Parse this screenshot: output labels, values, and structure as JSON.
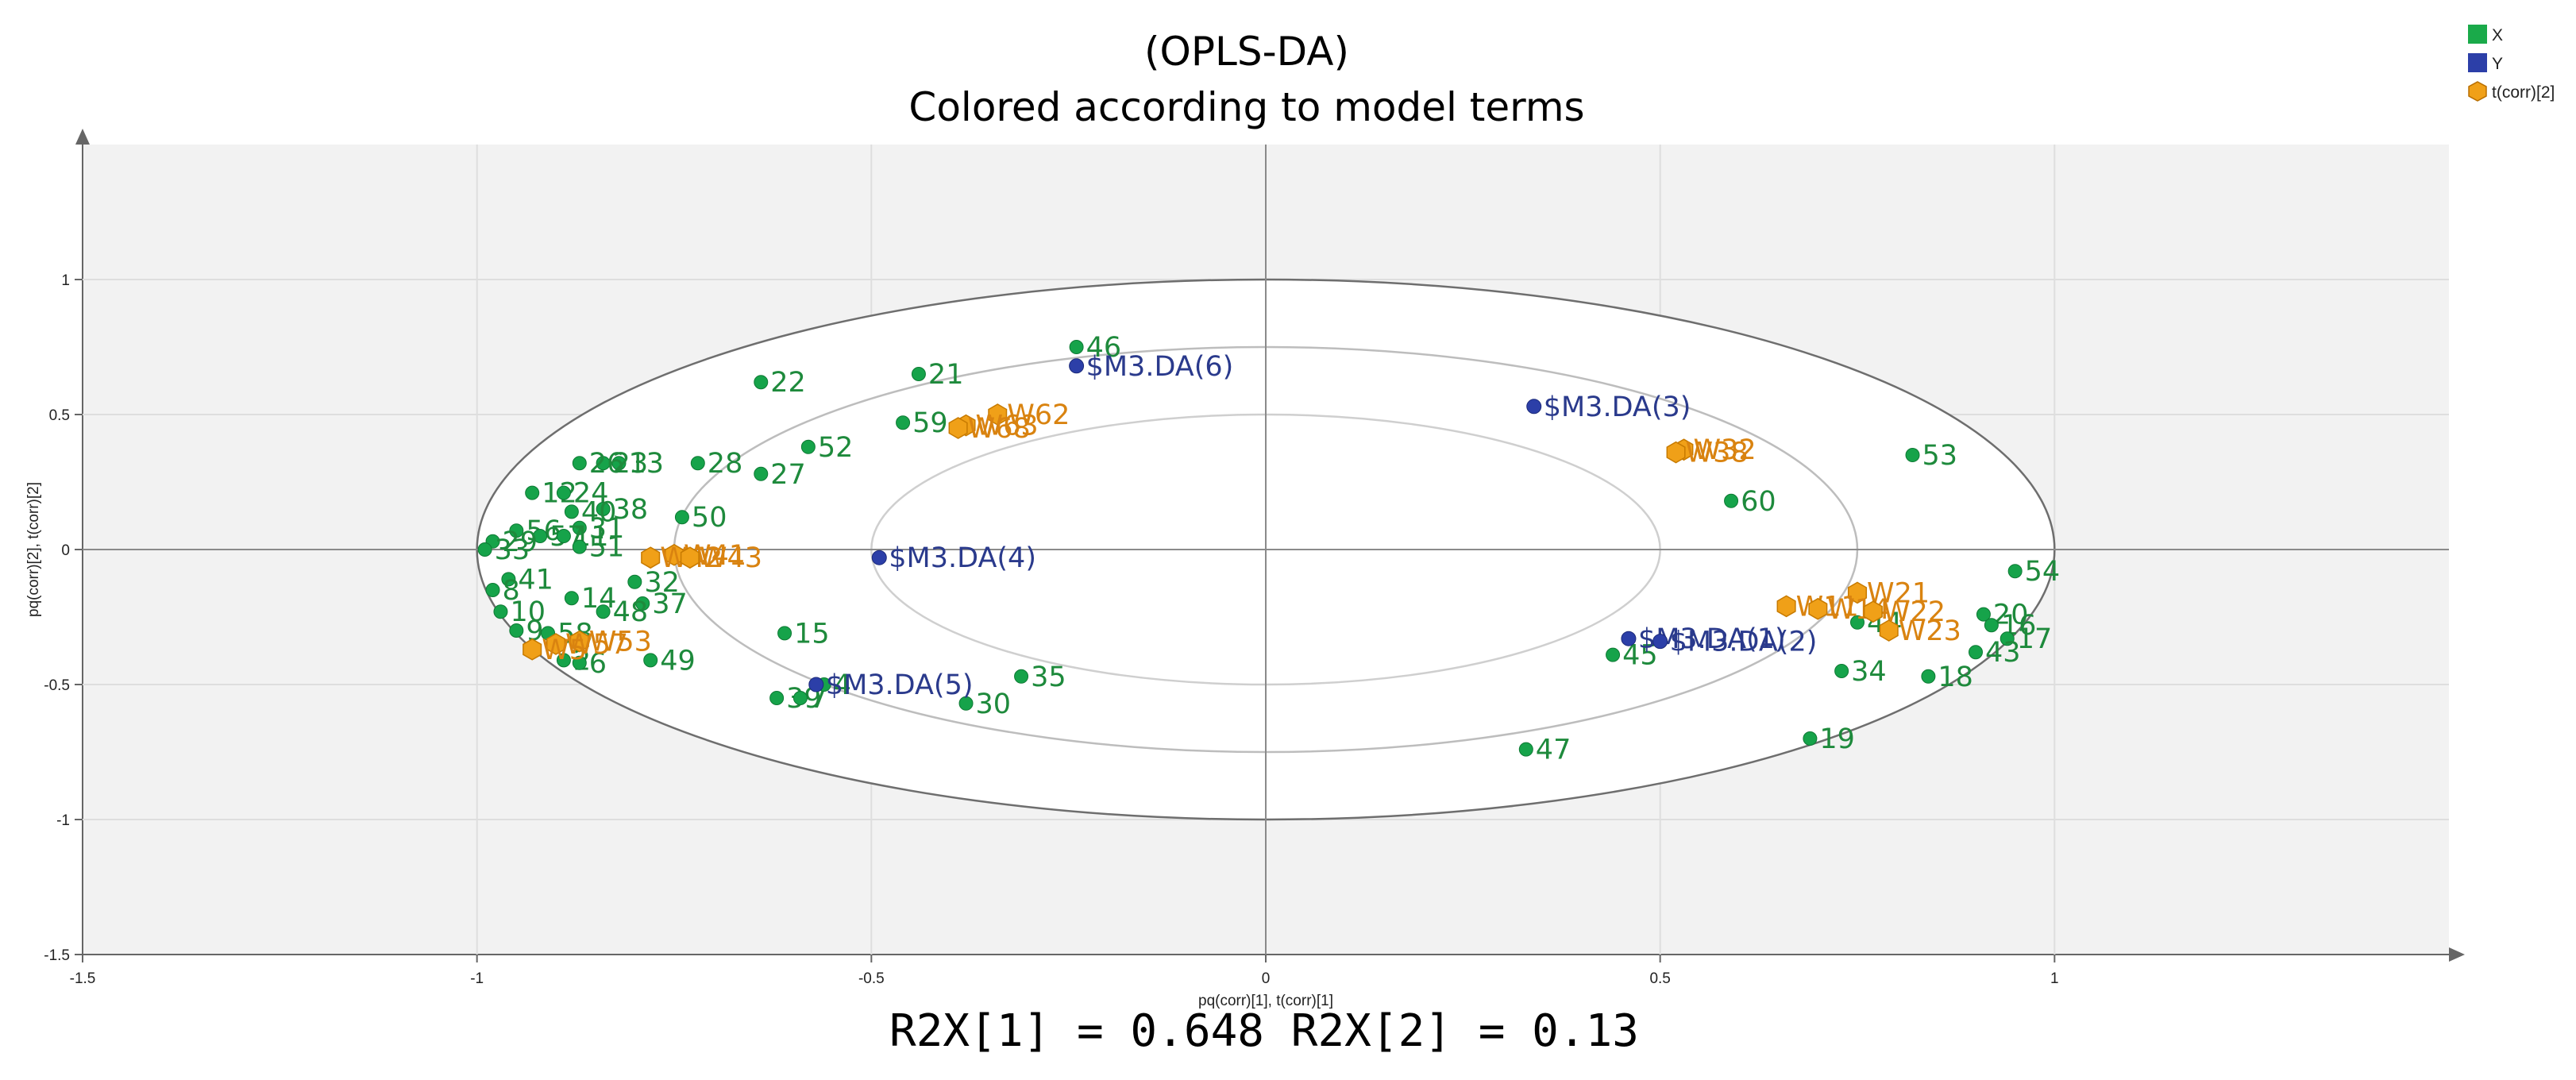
{
  "chart_data": {
    "type": "scatter",
    "title": "(OPLS-DA)",
    "subtitle": "Colored according to model terms",
    "xlabel": "pq(corr)[1], t(corr)[1]",
    "ylabel": "pq(corr)[2], t(corr)[2]",
    "xlim": [
      -1.5,
      1.5
    ],
    "ylim": [
      -1.5,
      1.5
    ],
    "xticks": [
      -1.5,
      -1,
      -0.5,
      0,
      0.5,
      1
    ],
    "yticks": [
      -1.5,
      -1,
      -0.5,
      0,
      0.5,
      1
    ],
    "xtick_labels": [
      "-1.5",
      "-1",
      "-0.5",
      "0",
      "0.5",
      "1"
    ],
    "ytick_labels": [
      "-1.5",
      "-1",
      "-0.5",
      "0",
      "0.5",
      "1"
    ],
    "ellipses_r": [
      1.0,
      0.75,
      0.5
    ],
    "legend": [
      {
        "name": "X",
        "color": "#1aaa4a",
        "shape": "square"
      },
      {
        "name": "Y",
        "color": "#2c3fa8",
        "shape": "square"
      },
      {
        "name": "t(corr)[2]",
        "color": "#f0a018",
        "shape": "hexagon"
      }
    ],
    "series": [
      {
        "name": "X",
        "color": "#16a34a",
        "label_color": "#1e8a3c",
        "points": [
          {
            "label": "46",
            "x": -0.24,
            "y": 0.75
          },
          {
            "label": "21",
            "x": -0.44,
            "y": 0.65
          },
          {
            "label": "22",
            "x": -0.64,
            "y": 0.62
          },
          {
            "label": "59",
            "x": -0.46,
            "y": 0.47
          },
          {
            "label": "52",
            "x": -0.58,
            "y": 0.38
          },
          {
            "label": "27",
            "x": -0.64,
            "y": 0.28
          },
          {
            "label": "28",
            "x": -0.72,
            "y": 0.32
          },
          {
            "label": "13",
            "x": -0.82,
            "y": 0.32
          },
          {
            "label": "23",
            "x": -0.84,
            "y": 0.32
          },
          {
            "label": "26",
            "x": -0.87,
            "y": 0.32
          },
          {
            "label": "12",
            "x": -0.93,
            "y": 0.21
          },
          {
            "label": "24",
            "x": -0.89,
            "y": 0.21
          },
          {
            "label": "38",
            "x": -0.84,
            "y": 0.15
          },
          {
            "label": "40",
            "x": -0.88,
            "y": 0.14
          },
          {
            "label": "50",
            "x": -0.74,
            "y": 0.12
          },
          {
            "label": "31",
            "x": -0.87,
            "y": 0.08
          },
          {
            "label": "56",
            "x": -0.95,
            "y": 0.07
          },
          {
            "label": "57",
            "x": -0.92,
            "y": 0.05
          },
          {
            "label": "11",
            "x": -0.89,
            "y": 0.05
          },
          {
            "label": "51",
            "x": -0.87,
            "y": 0.01
          },
          {
            "label": "29",
            "x": -0.98,
            "y": 0.03
          },
          {
            "label": "33",
            "x": -0.99,
            "y": 0.0
          },
          {
            "label": "32",
            "x": -0.8,
            "y": -0.12
          },
          {
            "label": "41",
            "x": -0.96,
            "y": -0.11
          },
          {
            "label": "37",
            "x": -0.79,
            "y": -0.2
          },
          {
            "label": "14",
            "x": -0.88,
            "y": -0.18
          },
          {
            "label": "48",
            "x": -0.84,
            "y": -0.23
          },
          {
            "label": "8",
            "x": -0.98,
            "y": -0.15
          },
          {
            "label": "10",
            "x": -0.97,
            "y": -0.23
          },
          {
            "label": "9",
            "x": -0.95,
            "y": -0.3
          },
          {
            "label": "58",
            "x": -0.91,
            "y": -0.31
          },
          {
            "label": "49",
            "x": -0.78,
            "y": -0.41
          },
          {
            "label": "2",
            "x": -0.89,
            "y": -0.41
          },
          {
            "label": "6",
            "x": -0.87,
            "y": -0.42
          },
          {
            "label": "15",
            "x": -0.61,
            "y": -0.31
          },
          {
            "label": "35",
            "x": -0.31,
            "y": -0.47
          },
          {
            "label": "30",
            "x": -0.38,
            "y": -0.57
          },
          {
            "label": "39",
            "x": -0.62,
            "y": -0.55
          },
          {
            "label": "7",
            "x": -0.59,
            "y": -0.55
          },
          {
            "label": "4",
            "x": -0.56,
            "y": -0.5
          },
          {
            "label": "53",
            "x": 0.82,
            "y": 0.35
          },
          {
            "label": "60",
            "x": 0.59,
            "y": 0.18
          },
          {
            "label": "54",
            "x": 0.95,
            "y": -0.08
          },
          {
            "label": "20",
            "x": 0.91,
            "y": -0.24
          },
          {
            "label": "16",
            "x": 0.92,
            "y": -0.28
          },
          {
            "label": "17",
            "x": 0.94,
            "y": -0.33
          },
          {
            "label": "43",
            "x": 0.9,
            "y": -0.38
          },
          {
            "label": "18",
            "x": 0.84,
            "y": -0.47
          },
          {
            "label": "34",
            "x": 0.73,
            "y": -0.45
          },
          {
            "label": "44",
            "x": 0.75,
            "y": -0.27
          },
          {
            "label": "45",
            "x": 0.44,
            "y": -0.39
          },
          {
            "label": "19",
            "x": 0.69,
            "y": -0.7
          },
          {
            "label": "47",
            "x": 0.33,
            "y": -0.74
          }
        ]
      },
      {
        "name": "Y",
        "color": "#2c3fa8",
        "label_color": "#2a3a8c",
        "points": [
          {
            "label": "$M3.DA(6)",
            "x": -0.24,
            "y": 0.68
          },
          {
            "label": "$M3.DA(3)",
            "x": 0.34,
            "y": 0.53
          },
          {
            "label": "$M3.DA(4)",
            "x": -0.49,
            "y": -0.03
          },
          {
            "label": "$M3.DA(5)",
            "x": -0.57,
            "y": -0.5
          },
          {
            "label": "$M3.DA(1)",
            "x": 0.46,
            "y": -0.33
          },
          {
            "label": "$M3.DA(2)",
            "x": 0.5,
            "y": -0.34
          }
        ]
      },
      {
        "name": "t(corr)[2]",
        "color": "#f0a018",
        "label_color": "#d98310",
        "points": [
          {
            "label": "W62",
            "x": -0.34,
            "y": 0.5
          },
          {
            "label": "W63",
            "x": -0.38,
            "y": 0.46
          },
          {
            "label": "W68",
            "x": -0.39,
            "y": 0.45
          },
          {
            "label": "W32",
            "x": 0.53,
            "y": 0.37
          },
          {
            "label": "W38",
            "x": 0.52,
            "y": 0.36
          },
          {
            "label": "W41",
            "x": -0.75,
            "y": -0.02
          },
          {
            "label": "W42",
            "x": -0.78,
            "y": -0.03
          },
          {
            "label": "W43",
            "x": -0.73,
            "y": -0.03
          },
          {
            "label": "W53",
            "x": -0.87,
            "y": -0.34
          },
          {
            "label": "W57",
            "x": -0.9,
            "y": -0.35
          },
          {
            "label": "W5",
            "x": -0.93,
            "y": -0.37
          },
          {
            "label": "W21",
            "x": 0.75,
            "y": -0.16
          },
          {
            "label": "W11",
            "x": 0.66,
            "y": -0.21
          },
          {
            "label": "W14",
            "x": 0.7,
            "y": -0.22
          },
          {
            "label": "W22",
            "x": 0.77,
            "y": -0.23
          },
          {
            "label": "W23",
            "x": 0.79,
            "y": -0.3
          }
        ]
      }
    ],
    "footer": "R2X[1] = 0.648 R2X[2] = 0.13"
  }
}
